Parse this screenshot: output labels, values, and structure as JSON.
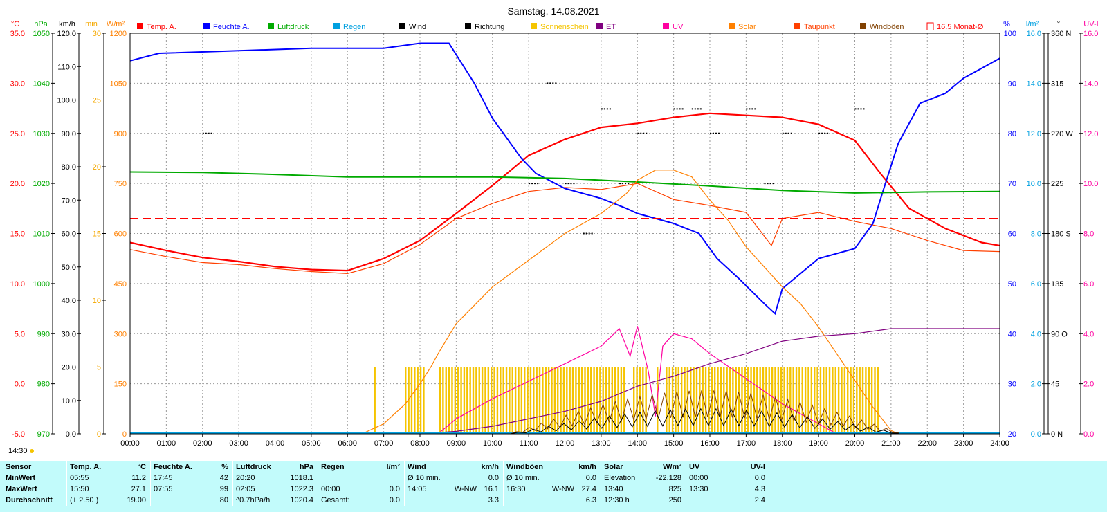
{
  "title": "Samstag, 14.08.2021",
  "time_stamp": "14:30",
  "legend": [
    {
      "label": "Temp. A.",
      "color": "#ff0000"
    },
    {
      "label": "Feuchte A.",
      "color": "#0000ff"
    },
    {
      "label": "Luftdruck",
      "color": "#00aa00"
    },
    {
      "label": "Regen",
      "color": "#00a0e0"
    },
    {
      "label": "Wind",
      "color": "#000000"
    },
    {
      "label": "Richtung",
      "color": "#000000"
    },
    {
      "label": "Sonnenschein",
      "color": "#f5c400"
    },
    {
      "label": "ET",
      "color": "#800080"
    },
    {
      "label": "UV",
      "color": "#ff00a0"
    },
    {
      "label": "Solar",
      "color": "#ff8000"
    },
    {
      "label": "Taupunkt",
      "color": "#ff4000"
    },
    {
      "label": "Windböen",
      "color": "#804000"
    },
    {
      "label": "16.5 Monat-Ø",
      "color": "#ff0000"
    }
  ],
  "axes": {
    "temp": {
      "unit": "°C",
      "color": "#ff0000",
      "ticks": [
        "35.0",
        "30.0",
        "25.0",
        "20.0",
        "15.0",
        "10.0",
        "5.0",
        "0.0",
        "-5.0"
      ]
    },
    "pressure": {
      "unit": "hPa",
      "color": "#00aa00",
      "ticks": [
        "1050",
        "1040",
        "1030",
        "1020",
        "1010",
        "1000",
        "990",
        "980",
        "970"
      ]
    },
    "wind": {
      "unit": "km/h",
      "color": "#000000",
      "ticks": [
        "120.0",
        "110.0",
        "100.0",
        "90.0",
        "80.0",
        "70.0",
        "60.0",
        "50.0",
        "40.0",
        "30.0",
        "20.0",
        "10.0",
        "0.0"
      ]
    },
    "sunshine": {
      "unit": "min",
      "color": "#f5a800",
      "ticks": [
        "30",
        "25",
        "20",
        "15",
        "10",
        "5",
        "0"
      ]
    },
    "solar": {
      "unit": "W/m²",
      "color": "#ff8000",
      "ticks": [
        "1200",
        "1050",
        "900",
        "750",
        "600",
        "450",
        "300",
        "150",
        "0"
      ]
    },
    "humidity": {
      "unit": "%",
      "color": "#0000ff",
      "ticks": [
        "100",
        "90",
        "80",
        "70",
        "60",
        "50",
        "40",
        "30",
        "20"
      ]
    },
    "rain": {
      "unit": "l/m²",
      "color": "#00a0e0",
      "ticks": [
        "16.0",
        "14.0",
        "12.0",
        "10.0",
        "8.0",
        "6.0",
        "4.0",
        "2.0",
        "0.0"
      ]
    },
    "direction": {
      "unit": "°",
      "color": "#000000",
      "ticks": [
        "360 N",
        "315",
        "270 W",
        "225",
        "180 S",
        "135",
        "90 O",
        "45",
        "0 N"
      ]
    },
    "uv": {
      "unit": "UV-I",
      "color": "#ff00a0",
      "ticks": [
        "16.0",
        "14.0",
        "12.0",
        "10.0",
        "8.0",
        "6.0",
        "4.0",
        "2.0",
        "0.0"
      ]
    }
  },
  "chart_data": {
    "type": "line",
    "title": "Samstag, 14.08.2021",
    "x": [
      "00:00",
      "01:00",
      "02:00",
      "03:00",
      "04:00",
      "05:00",
      "06:00",
      "07:00",
      "08:00",
      "09:00",
      "10:00",
      "11:00",
      "12:00",
      "13:00",
      "14:00",
      "15:00",
      "16:00",
      "17:00",
      "18:00",
      "19:00",
      "20:00",
      "21:00",
      "22:00",
      "23:00",
      "24:00"
    ],
    "series": [
      {
        "name": "Temp. A.",
        "axis": "temp",
        "color": "#ff0000",
        "points": [
          [
            0,
            14.1
          ],
          [
            1,
            13.3
          ],
          [
            2,
            12.6
          ],
          [
            3,
            12.2
          ],
          [
            4,
            11.7
          ],
          [
            5,
            11.4
          ],
          [
            6,
            11.3
          ],
          [
            7,
            12.5
          ],
          [
            8,
            14.3
          ],
          [
            9,
            17.0
          ],
          [
            10,
            19.8
          ],
          [
            11,
            22.8
          ],
          [
            12,
            24.4
          ],
          [
            13,
            25.6
          ],
          [
            14,
            26.0
          ],
          [
            15,
            26.6
          ],
          [
            16,
            27.0
          ],
          [
            17,
            26.8
          ],
          [
            18,
            26.6
          ],
          [
            19,
            25.9
          ],
          [
            20,
            24.3
          ],
          [
            20.75,
            20.8
          ],
          [
            21.5,
            17.5
          ],
          [
            22.5,
            15.5
          ],
          [
            23.5,
            14.1
          ],
          [
            24,
            13.8
          ]
        ]
      },
      {
        "name": "Taupunkt",
        "axis": "temp",
        "color": "#ff4000",
        "points": [
          [
            0,
            13.4
          ],
          [
            1,
            12.7
          ],
          [
            2,
            12.1
          ],
          [
            3,
            11.9
          ],
          [
            4,
            11.5
          ],
          [
            5,
            11.2
          ],
          [
            6,
            11.0
          ],
          [
            7,
            12.0
          ],
          [
            8,
            13.9
          ],
          [
            9,
            16.5
          ],
          [
            10,
            18.0
          ],
          [
            11,
            19.2
          ],
          [
            12,
            19.6
          ],
          [
            13,
            19.4
          ],
          [
            14,
            20.0
          ],
          [
            15,
            18.4
          ],
          [
            16,
            17.8
          ],
          [
            17,
            17.1
          ],
          [
            17.7,
            13.8
          ],
          [
            18,
            16.5
          ],
          [
            19,
            17.1
          ],
          [
            20,
            16.2
          ],
          [
            21,
            15.5
          ],
          [
            22,
            14.3
          ],
          [
            23,
            13.3
          ],
          [
            24,
            13.2
          ]
        ]
      },
      {
        "name": "Feuchte A.",
        "axis": "humidity",
        "color": "#0000ff",
        "points": [
          [
            0,
            94.5
          ],
          [
            0.8,
            96
          ],
          [
            3,
            96.5
          ],
          [
            5,
            97
          ],
          [
            7,
            97
          ],
          [
            8,
            98
          ],
          [
            8.8,
            98
          ],
          [
            9.5,
            90
          ],
          [
            10,
            83
          ],
          [
            10.8,
            75
          ],
          [
            11.2,
            72
          ],
          [
            12,
            69
          ],
          [
            13,
            67
          ],
          [
            13.7,
            65
          ],
          [
            14,
            64
          ],
          [
            15,
            62
          ],
          [
            15.7,
            60
          ],
          [
            16.2,
            55
          ],
          [
            16.8,
            51
          ],
          [
            17.5,
            46
          ],
          [
            17.8,
            44
          ],
          [
            18,
            49
          ],
          [
            19,
            55
          ],
          [
            20,
            57
          ],
          [
            20.5,
            62
          ],
          [
            20.8,
            69
          ],
          [
            21.2,
            78
          ],
          [
            21.8,
            86
          ],
          [
            22.5,
            88
          ],
          [
            23,
            91
          ],
          [
            23.5,
            93
          ],
          [
            24,
            95
          ]
        ]
      },
      {
        "name": "Luftdruck",
        "axis": "pressure",
        "color": "#00aa00",
        "points": [
          [
            0,
            1022.3
          ],
          [
            2,
            1022.2
          ],
          [
            4,
            1021.8
          ],
          [
            6,
            1021.3
          ],
          [
            8,
            1021.3
          ],
          [
            10,
            1021.3
          ],
          [
            12,
            1021.0
          ],
          [
            14,
            1020.3
          ],
          [
            16,
            1019.5
          ],
          [
            18,
            1018.6
          ],
          [
            20,
            1018.1
          ],
          [
            21,
            1018.2
          ],
          [
            22,
            1018.3
          ],
          [
            24,
            1018.4
          ]
        ]
      },
      {
        "name": "Solar",
        "axis": "solar",
        "color": "#ff8000",
        "points": [
          [
            6.4,
            0
          ],
          [
            7,
            30
          ],
          [
            7.6,
            90
          ],
          [
            8,
            150
          ],
          [
            8.3,
            200
          ],
          [
            8.5,
            240
          ],
          [
            9,
            330
          ],
          [
            10,
            440
          ],
          [
            11,
            520
          ],
          [
            12,
            600
          ],
          [
            13,
            660
          ],
          [
            13.7,
            720
          ],
          [
            14,
            760
          ],
          [
            14.5,
            790
          ],
          [
            15,
            790
          ],
          [
            15.5,
            770
          ],
          [
            16,
            700
          ],
          [
            16.5,
            640
          ],
          [
            17,
            560
          ],
          [
            17.5,
            500
          ],
          [
            18,
            440
          ],
          [
            18.5,
            390
          ],
          [
            19,
            320
          ],
          [
            19.5,
            240
          ],
          [
            20,
            160
          ],
          [
            20.5,
            80
          ],
          [
            21,
            10
          ],
          [
            21.2,
            0
          ]
        ]
      },
      {
        "name": "UV",
        "axis": "uv",
        "color": "#ff00a0",
        "points": [
          [
            8.5,
            0
          ],
          [
            9,
            0.6
          ],
          [
            10,
            1.4
          ],
          [
            11,
            2.1
          ],
          [
            12,
            2.8
          ],
          [
            13,
            3.5
          ],
          [
            13.5,
            4.2
          ],
          [
            13.8,
            3.1
          ],
          [
            14,
            4.3
          ],
          [
            14.3,
            2.5
          ],
          [
            14.5,
            0.7
          ],
          [
            14.7,
            3.5
          ],
          [
            15,
            4.0
          ],
          [
            15.5,
            3.8
          ],
          [
            16,
            3.2
          ],
          [
            17,
            2.2
          ],
          [
            18,
            1.2
          ],
          [
            19,
            0.4
          ],
          [
            19.5,
            0
          ]
        ]
      },
      {
        "name": "ET",
        "axis": "rain",
        "color": "#800080",
        "points": [
          [
            8,
            0
          ],
          [
            9,
            0.1
          ],
          [
            10,
            0.3
          ],
          [
            11,
            0.6
          ],
          [
            12,
            0.9
          ],
          [
            13,
            1.3
          ],
          [
            14,
            1.9
          ],
          [
            15,
            2.3
          ],
          [
            16,
            2.8
          ],
          [
            17,
            3.2
          ],
          [
            18,
            3.7
          ],
          [
            19,
            3.9
          ],
          [
            20,
            4.0
          ],
          [
            21,
            4.2
          ],
          [
            24,
            4.2
          ]
        ]
      },
      {
        "name": "16.5 Monat-Ø",
        "axis": "temp",
        "color": "#ff0000",
        "points": [
          [
            0,
            16.5
          ],
          [
            24,
            16.5
          ]
        ]
      }
    ]
  },
  "footer": {
    "headers": {
      "sensor": "Sensor",
      "temp": "Temp. A.",
      "temp_unit": "°C",
      "hum": "Feuchte A.",
      "hum_unit": "%",
      "press": "Luftdruck",
      "press_unit": "hPa",
      "rain": "Regen",
      "rain_unit": "l/m²",
      "wind": "Wind",
      "wind_unit": "km/h",
      "gust": "Windböen",
      "gust_unit": "km/h",
      "solar": "Solar",
      "solar_unit": "W/m²",
      "uv": "UV",
      "uv_unit": "UV-I"
    },
    "rows": [
      {
        "label": "MinWert",
        "temp_t": "05:55",
        "temp_v": "11.2",
        "hum_t": "17:45",
        "hum_v": "42",
        "press_t": "20:20",
        "press_v": "1018.1",
        "rain_t": "",
        "rain_v": "",
        "wind_t": "Ø 10 min.",
        "wind_d": "",
        "wind_v": "0.0",
        "gust_t": "Ø 10 min.",
        "gust_d": "",
        "gust_v": "0.0",
        "solar_t": "Elevation",
        "solar_v": "-22.128",
        "uv_t": "00:00",
        "uv_v": "0.0"
      },
      {
        "label": "MaxWert",
        "temp_t": "15:50",
        "temp_v": "27.1",
        "hum_t": "07:55",
        "hum_v": "99",
        "press_t": "02:05",
        "press_v": "1022.3",
        "rain_t": "00:00",
        "rain_v": "0.0",
        "wind_t": "14:05",
        "wind_d": "W-NW",
        "wind_v": "16.1",
        "gust_t": "16:30",
        "gust_d": "W-NW",
        "gust_v": "27.4",
        "solar_t": "13:40",
        "solar_v": "825",
        "uv_t": "13:30",
        "uv_v": "4.3"
      },
      {
        "label": "Durchschnitt",
        "temp_t": "(+ 2.50 )",
        "temp_v": "19.00",
        "hum_t": "",
        "hum_v": "80",
        "press_t": "^0.7hPa/h",
        "press_v": "1020.4",
        "rain_t": "Gesamt:",
        "rain_v": "0.0",
        "wind_t": "",
        "wind_d": "",
        "wind_v": "3.3",
        "gust_t": "",
        "gust_d": "",
        "gust_v": "6.3",
        "solar_t": "12:30 h",
        "solar_v": "250",
        "uv_t": "",
        "uv_v": "2.4"
      }
    ]
  }
}
